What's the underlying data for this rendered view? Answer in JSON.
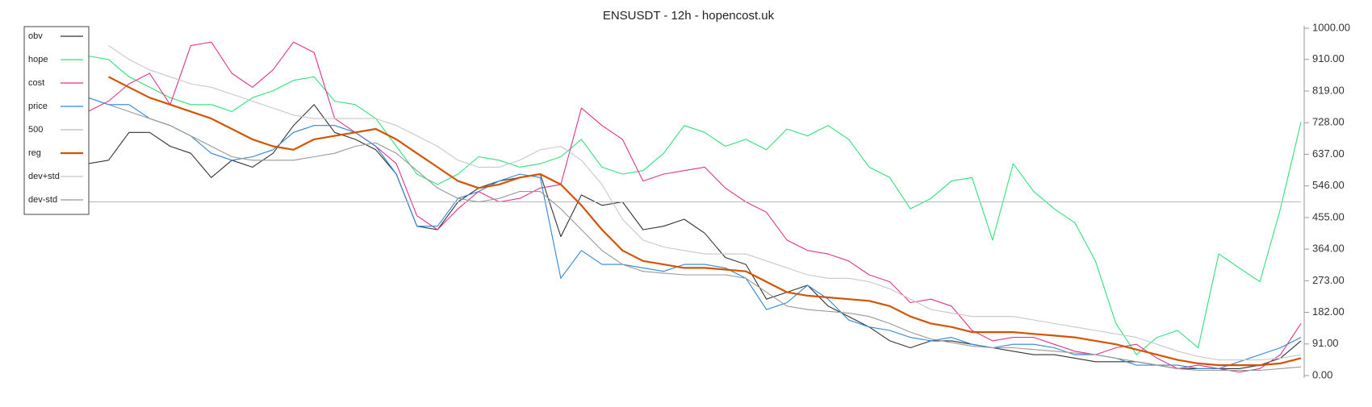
{
  "chart_data": {
    "type": "line",
    "title": "ENSUSDT - 12h - hopencost.uk",
    "ylim": [
      0,
      1000
    ],
    "yticks": [
      {
        "value": 0,
        "label": "0.00"
      },
      {
        "value": 91,
        "label": "91.00"
      },
      {
        "value": 182,
        "label": "182.00"
      },
      {
        "value": 273,
        "label": "273.00"
      },
      {
        "value": 364,
        "label": "364.00"
      },
      {
        "value": 455,
        "label": "455.00"
      },
      {
        "value": 546,
        "label": "546.00"
      },
      {
        "value": 637,
        "label": "637.00"
      },
      {
        "value": 728,
        "label": "728.00"
      },
      {
        "value": 819,
        "label": "819.00"
      },
      {
        "value": 910,
        "label": "910.00"
      },
      {
        "value": 1000,
        "label": "1000.00"
      }
    ],
    "legend": "upper left",
    "series": [
      {
        "name": "obv",
        "color": "#333333",
        "values": [
          610,
          620,
          700,
          700,
          660,
          640,
          570,
          620,
          600,
          640,
          720,
          780,
          700,
          680,
          650,
          580,
          430,
          420,
          500,
          540,
          560,
          570,
          580,
          400,
          520,
          490,
          500,
          420,
          430,
          450,
          410,
          340,
          320,
          220,
          240,
          260,
          200,
          170,
          140,
          100,
          80,
          100,
          100,
          90,
          80,
          70,
          60,
          60,
          50,
          40,
          40,
          40,
          30,
          20,
          20,
          20,
          20,
          30,
          50,
          100
        ]
      },
      {
        "name": "hope",
        "color": "#2ee27a",
        "values": [
          920,
          910,
          860,
          830,
          800,
          780,
          780,
          760,
          800,
          820,
          850,
          860,
          790,
          780,
          740,
          660,
          580,
          550,
          580,
          630,
          620,
          600,
          610,
          630,
          680,
          600,
          580,
          590,
          640,
          720,
          700,
          660,
          680,
          650,
          710,
          690,
          720,
          680,
          600,
          570,
          480,
          510,
          560,
          570,
          390,
          610,
          530,
          480,
          440,
          330,
          150,
          60,
          110,
          130,
          80,
          350,
          310,
          270,
          480,
          730
        ]
      },
      {
        "name": "cost",
        "color": "#e0338c",
        "values": [
          760,
          790,
          840,
          870,
          780,
          950,
          960,
          870,
          830,
          880,
          960,
          930,
          740,
          700,
          660,
          610,
          460,
          420,
          480,
          530,
          500,
          510,
          540,
          550,
          770,
          720,
          680,
          560,
          580,
          590,
          600,
          540,
          500,
          470,
          390,
          360,
          350,
          330,
          290,
          270,
          210,
          220,
          200,
          130,
          100,
          110,
          110,
          90,
          70,
          60,
          80,
          90,
          50,
          20,
          30,
          20,
          10,
          20,
          60,
          150
        ]
      },
      {
        "name": "price",
        "color": "#2f86d6",
        "values": [
          800,
          780,
          780,
          740,
          720,
          690,
          640,
          620,
          630,
          650,
          700,
          720,
          720,
          700,
          660,
          580,
          430,
          430,
          510,
          530,
          560,
          580,
          570,
          280,
          360,
          320,
          320,
          310,
          300,
          320,
          320,
          310,
          280,
          190,
          210,
          260,
          220,
          160,
          140,
          130,
          110,
          100,
          110,
          90,
          80,
          90,
          90,
          80,
          60,
          60,
          50,
          30,
          30,
          30,
          20,
          20,
          40,
          60,
          80,
          110
        ]
      },
      {
        "name": "500",
        "color": "#bbbbbb",
        "values": [
          500,
          500
        ]
      },
      {
        "name": "reg",
        "color": "#d35400",
        "values": [
          null,
          860,
          830,
          800,
          780,
          760,
          740,
          710,
          680,
          660,
          650,
          680,
          690,
          700,
          710,
          680,
          640,
          600,
          560,
          540,
          550,
          570,
          580,
          550,
          490,
          420,
          360,
          330,
          320,
          310,
          310,
          305,
          300,
          270,
          240,
          230,
          225,
          220,
          215,
          200,
          170,
          150,
          140,
          125,
          125,
          125,
          120,
          115,
          110,
          100,
          90,
          75,
          60,
          45,
          35,
          30,
          30,
          30,
          35,
          50
        ]
      },
      {
        "name": "dev+std",
        "color": "#c8c8c8",
        "values": [
          null,
          950,
          910,
          880,
          860,
          840,
          830,
          810,
          790,
          770,
          750,
          740,
          740,
          740,
          740,
          720,
          690,
          660,
          620,
          600,
          600,
          620,
          650,
          660,
          620,
          550,
          450,
          390,
          370,
          360,
          350,
          350,
          350,
          330,
          310,
          290,
          280,
          280,
          270,
          250,
          220,
          190,
          180,
          170,
          170,
          170,
          160,
          150,
          140,
          130,
          120,
          110,
          90,
          70,
          55,
          45,
          45,
          45,
          50,
          60
        ]
      },
      {
        "name": "dev-std",
        "color": "#999999",
        "values": [
          null,
          780,
          760,
          740,
          720,
          690,
          660,
          630,
          620,
          620,
          620,
          630,
          640,
          660,
          670,
          640,
          590,
          540,
          510,
          500,
          510,
          530,
          530,
          480,
          420,
          360,
          320,
          300,
          295,
          290,
          290,
          290,
          280,
          240,
          200,
          190,
          185,
          180,
          170,
          150,
          125,
          105,
          95,
          85,
          80,
          80,
          75,
          70,
          65,
          60,
          50,
          40,
          30,
          20,
          15,
          15,
          15,
          15,
          20,
          25
        ]
      }
    ]
  }
}
